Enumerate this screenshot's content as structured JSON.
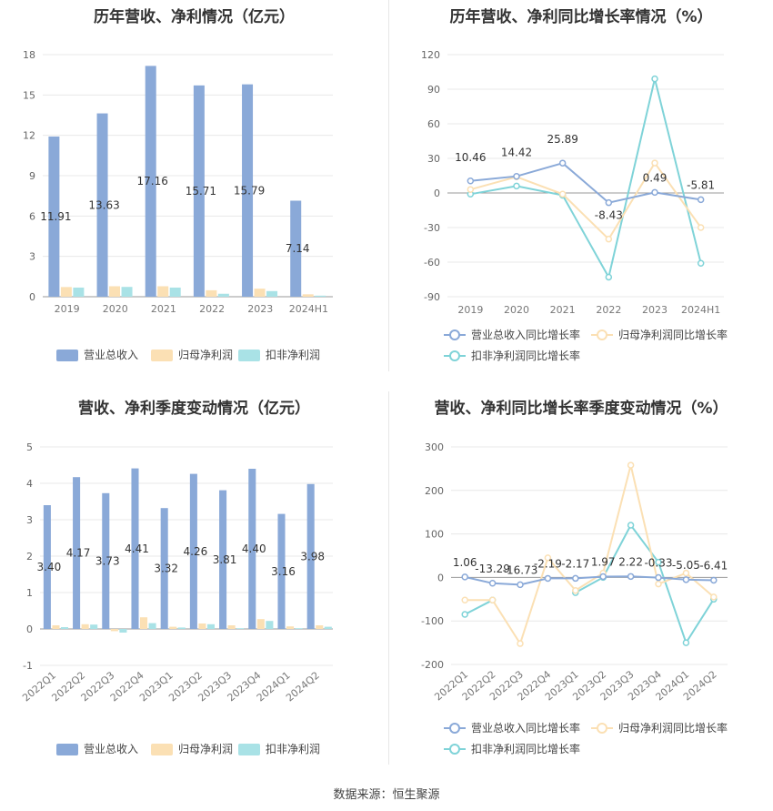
{
  "footer": {
    "source": "数据来源：恒生聚源"
  },
  "colors": {
    "revenue": "#8aa9d8",
    "net_profit": "#fbe0b4",
    "deducted": "#a9e2e6",
    "revenue_line": "#8aa9d8",
    "net_line": "#fbe0b4",
    "deducted_line": "#7fd3d8"
  },
  "chart_data": [
    {
      "type": "bar",
      "title": "历年营收、净利情况（亿元）",
      "categories": [
        "2019",
        "2020",
        "2021",
        "2022",
        "2023",
        "2024H1"
      ],
      "series": [
        {
          "name": "营业总收入",
          "values": [
            11.91,
            13.63,
            17.16,
            15.71,
            15.79,
            7.14
          ]
        },
        {
          "name": "归母净利润",
          "values": [
            0.72,
            0.78,
            0.78,
            0.48,
            0.6,
            0.18
          ]
        },
        {
          "name": "扣非净利润",
          "values": [
            0.68,
            0.73,
            0.68,
            0.22,
            0.42,
            0.08
          ]
        }
      ],
      "data_labels": [
        "11.91",
        "13.63",
        "17.16",
        "15.71",
        "15.79",
        "7.14"
      ],
      "yticks": [
        "0",
        "3",
        "6",
        "9",
        "12",
        "15",
        "18"
      ],
      "ylim": [
        0,
        18
      ],
      "legend": "bottom"
    },
    {
      "type": "line",
      "title": "历年营收、净利同比增长率情况（%）",
      "categories": [
        "2019",
        "2020",
        "2021",
        "2022",
        "2023",
        "2024H1"
      ],
      "series": [
        {
          "name": "营业总收入同比增长率",
          "values": [
            10.46,
            14.42,
            25.89,
            -8.43,
            0.49,
            -5.81
          ]
        },
        {
          "name": "归母净利润同比增长率",
          "values": [
            3,
            14,
            -1,
            -40,
            26,
            -30
          ]
        },
        {
          "name": "扣非净利润同比增长率",
          "values": [
            -1,
            6,
            -2,
            -73,
            99,
            -61
          ]
        }
      ],
      "data_labels": [
        "10.46",
        "14.42",
        "25.89",
        "-8.43",
        "0.49",
        "-5.81"
      ],
      "yticks": [
        "-90",
        "-60",
        "-30",
        "0",
        "30",
        "60",
        "90",
        "120"
      ],
      "ylim": [
        -90,
        120
      ],
      "legend": "bottom"
    },
    {
      "type": "bar",
      "title": "营收、净利季度变动情况（亿元）",
      "categories": [
        "2022Q1",
        "2022Q2",
        "2022Q3",
        "2022Q4",
        "2023Q1",
        "2023Q2",
        "2023Q3",
        "2023Q4",
        "2024Q1",
        "2024Q2"
      ],
      "series": [
        {
          "name": "营业总收入",
          "values": [
            3.4,
            4.17,
            3.73,
            4.41,
            3.32,
            4.26,
            3.81,
            4.4,
            3.16,
            3.98
          ]
        },
        {
          "name": "归母净利润",
          "values": [
            0.1,
            0.13,
            -0.06,
            0.32,
            0.06,
            0.15,
            0.1,
            0.27,
            0.07,
            0.1
          ]
        },
        {
          "name": "扣非净利润",
          "values": [
            0.05,
            0.12,
            -0.1,
            0.16,
            0.04,
            0.13,
            0.02,
            0.22,
            0.02,
            0.06
          ]
        }
      ],
      "data_labels": [
        "3.40",
        "4.17",
        "3.73",
        "4.41",
        "3.32",
        "4.26",
        "3.81",
        "4.40",
        "3.16",
        "3.98"
      ],
      "yticks": [
        "-1",
        "0",
        "1",
        "2",
        "3",
        "4",
        "5"
      ],
      "ylim": [
        -1,
        5
      ],
      "legend": "bottom"
    },
    {
      "type": "line",
      "title": "营收、净利同比增长率季度变动情况（%）",
      "categories": [
        "2022Q1",
        "2022Q2",
        "2022Q3",
        "2022Q4",
        "2023Q1",
        "2023Q2",
        "2023Q3",
        "2023Q4",
        "2024Q1",
        "2024Q2"
      ],
      "series": [
        {
          "name": "营业总收入同比增长率",
          "values": [
            1.06,
            -13.29,
            -16.73,
            -2.19,
            -2.17,
            1.97,
            2.22,
            -0.33,
            -5.05,
            -6.41
          ]
        },
        {
          "name": "归母净利润同比增长率",
          "values": [
            -52,
            -52,
            -152,
            45,
            -30,
            10,
            258,
            -15,
            10,
            -45
          ]
        },
        {
          "name": "扣非净利润同比增长率",
          "values": [
            -85,
            -52,
            null,
            null,
            -35,
            0,
            120,
            35,
            -150,
            -50
          ]
        }
      ],
      "data_labels": [
        "1.06",
        "-13.29",
        "-16.73",
        "-2.19",
        "-2.17",
        "1.97",
        "2.22",
        "-0.33",
        "-5.05",
        "-6.41"
      ],
      "yticks": [
        "-200",
        "-100",
        "0",
        "100",
        "200",
        "300"
      ],
      "ylim": [
        -200,
        300
      ],
      "legend": "bottom"
    }
  ]
}
